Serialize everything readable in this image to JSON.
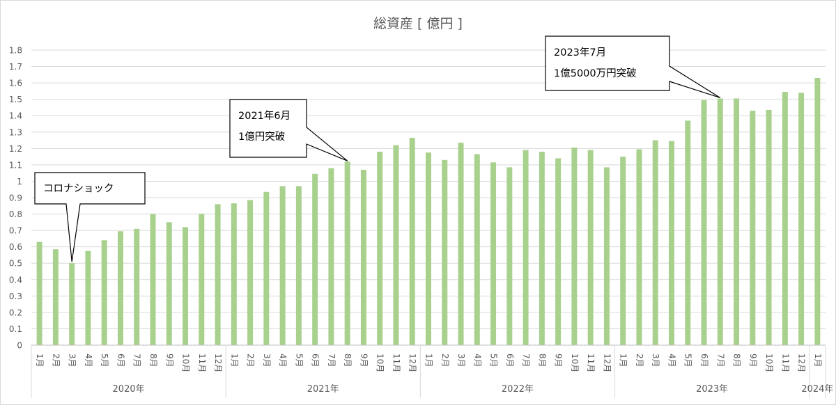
{
  "chart_data": {
    "type": "bar",
    "title": "総資産 [ 億円 ]",
    "xlabel": "",
    "ylabel": "",
    "ylim": [
      0,
      1.8
    ],
    "ytick_labels": [
      "0",
      "0.1",
      "0.2",
      "0.3",
      "0.4",
      "0.5",
      "0.6",
      "0.7",
      "0.8",
      "0.9",
      "1",
      "1.1",
      "1.2",
      "1.3",
      "1.4",
      "1.5",
      "1.6",
      "1.7",
      "1.8"
    ],
    "grid": true,
    "legend": "none",
    "bar_color": "#a9d18e",
    "categories": [
      "1月",
      "2月",
      "3月",
      "4月",
      "5月",
      "6月",
      "7月",
      "8月",
      "9月",
      "10月",
      "11月",
      "12月",
      "1月",
      "2月",
      "3月",
      "4月",
      "5月",
      "6月",
      "7月",
      "8月",
      "9月",
      "10月",
      "11月",
      "12月",
      "1月",
      "2月",
      "3月",
      "4月",
      "5月",
      "6月",
      "7月",
      "8月",
      "9月",
      "10月",
      "11月",
      "12月",
      "1月",
      "2月",
      "3月",
      "4月",
      "5月",
      "6月",
      "7月",
      "8月",
      "9月",
      "10月",
      "11月",
      "12月",
      "1月"
    ],
    "year_groups": [
      {
        "label": "2020年",
        "count": 12
      },
      {
        "label": "2021年",
        "count": 12
      },
      {
        "label": "2022年",
        "count": 12
      },
      {
        "label": "2023年",
        "count": 12
      },
      {
        "label": "2024年",
        "count": 1
      }
    ],
    "values": [
      0.63,
      0.585,
      0.5,
      0.575,
      0.64,
      0.695,
      0.71,
      0.8,
      0.75,
      0.72,
      0.8,
      0.86,
      0.865,
      0.885,
      0.935,
      0.97,
      0.97,
      1.045,
      1.08,
      1.12,
      1.07,
      1.18,
      1.22,
      1.265,
      1.175,
      1.13,
      1.235,
      1.165,
      1.115,
      1.085,
      1.19,
      1.18,
      1.14,
      1.205,
      1.19,
      1.085,
      1.15,
      1.195,
      1.25,
      1.245,
      1.37,
      1.495,
      1.505,
      1.505,
      1.43,
      1.435,
      1.545,
      1.54,
      1.63
    ],
    "annotations": [
      {
        "lines": [
          "コロナショック"
        ],
        "bar_index": 2
      },
      {
        "lines": [
          "2021年6月",
          "1億円突破"
        ],
        "bar_index": 19
      },
      {
        "lines": [
          "2023年7月",
          "1億5000万円突破"
        ],
        "bar_index": 42
      }
    ]
  }
}
